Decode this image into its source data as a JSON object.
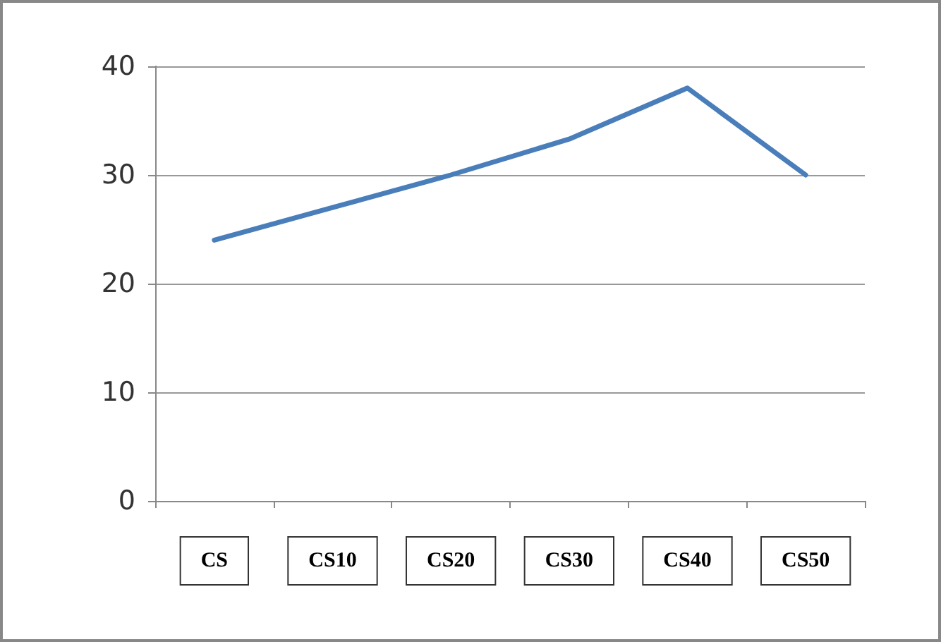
{
  "chart_data": {
    "type": "line",
    "categories": [
      "CS",
      "CS10",
      "CS20",
      "CS30",
      "CS40",
      "CS50"
    ],
    "series": [
      {
        "color": "#4a7ebb",
        "values": [
          24,
          27,
          30,
          33.3,
          38,
          30
        ]
      }
    ],
    "ylim": [
      0,
      40
    ],
    "yticks": [
      0,
      10,
      20,
      30,
      40
    ],
    "grid": "y",
    "marker": "none",
    "line_style": "solid"
  }
}
